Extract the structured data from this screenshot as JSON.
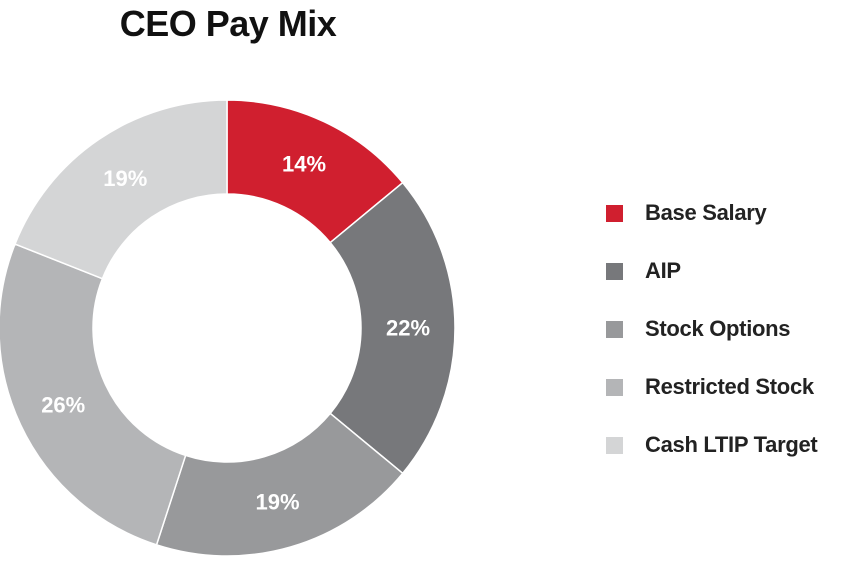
{
  "chart_data": {
    "type": "pie",
    "title": "CEO Pay Mix",
    "categories": [
      "Base Salary",
      "AIP",
      "Stock Options",
      "Restricted Stock",
      "Cash LTIP Target"
    ],
    "values": [
      14,
      22,
      19,
      26,
      19
    ],
    "value_labels": [
      "14%",
      "22%",
      "19%",
      "26%",
      "19%"
    ],
    "colors": [
      "#d01f2f",
      "#77787b",
      "#98999b",
      "#b4b5b7",
      "#d4d5d6"
    ],
    "legend": "right",
    "donut": true,
    "start": "12 o'clock",
    "direction": "clockwise"
  }
}
